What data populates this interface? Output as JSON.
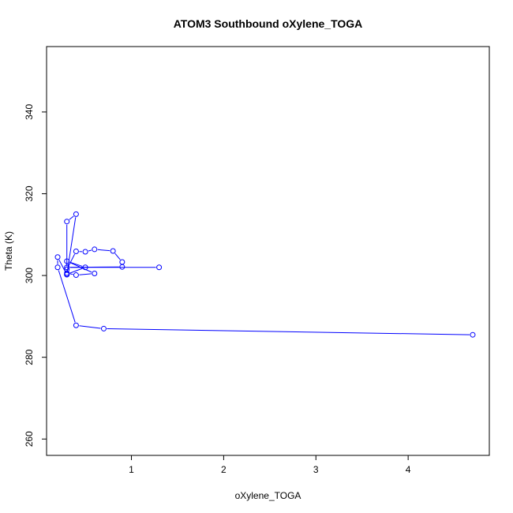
{
  "chart_data": {
    "type": "line",
    "title": "ATOM3 Southbound oXylene_TOGA",
    "xlabel": "oXylene_TOGA",
    "ylabel": "Theta (K)",
    "xlim": [
      0.08,
      4.88
    ],
    "ylim": [
      256,
      356
    ],
    "xticks": [
      1,
      2,
      3,
      4
    ],
    "yticks": [
      260,
      280,
      300,
      320,
      340
    ],
    "grid": false,
    "line_color": "#0000ff",
    "marker": "open-circle",
    "series": [
      {
        "points": [
          [
            4.7,
            285.5
          ],
          [
            0.7,
            287.0
          ],
          [
            0.4,
            287.8
          ],
          [
            0.2,
            302.0
          ],
          [
            0.2,
            304.5
          ],
          [
            0.3,
            300.2
          ],
          [
            0.3,
            300.6
          ],
          [
            0.4,
            300.1
          ],
          [
            0.6,
            300.5
          ],
          [
            0.3,
            303.5
          ],
          [
            0.5,
            302.0
          ],
          [
            0.3,
            300.3
          ],
          [
            0.4,
            315.0
          ],
          [
            0.3,
            313.2
          ],
          [
            0.3,
            301.5
          ],
          [
            0.4,
            305.9
          ],
          [
            0.5,
            305.8
          ],
          [
            0.6,
            306.4
          ],
          [
            0.8,
            306.0
          ],
          [
            0.9,
            303.3
          ],
          [
            0.9,
            302.1
          ],
          [
            0.3,
            302.0
          ],
          [
            1.3,
            302.0
          ]
        ]
      }
    ]
  }
}
